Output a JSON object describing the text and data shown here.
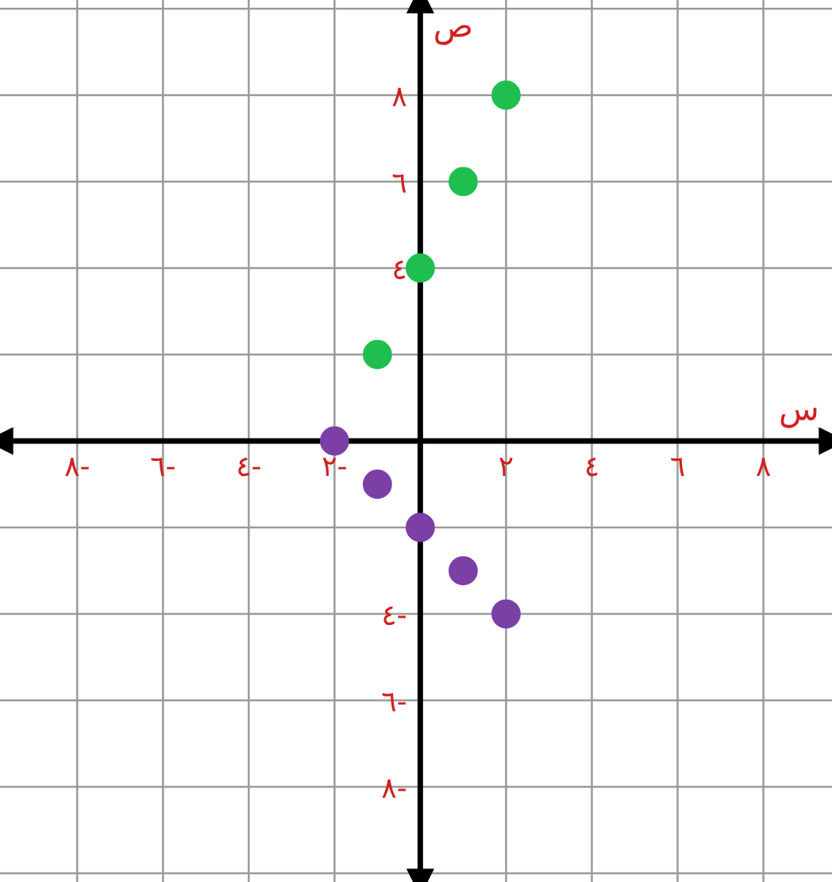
{
  "chart_data": {
    "type": "scatter",
    "xlabel": "س",
    "ylabel": "ص",
    "marker": "circle",
    "grid": true,
    "legend": false,
    "xlim": [
      -9.8,
      9.6
    ],
    "ylim": [
      -10.2,
      10.2
    ],
    "xticks": [
      {
        "value": -8,
        "label": "٨-"
      },
      {
        "value": -6,
        "label": "٦-"
      },
      {
        "value": -4,
        "label": "٤-"
      },
      {
        "value": -2,
        "label": "٢-"
      },
      {
        "value": 2,
        "label": "٢"
      },
      {
        "value": 4,
        "label": "٤"
      },
      {
        "value": 6,
        "label": "٦"
      },
      {
        "value": 8,
        "label": "٨"
      }
    ],
    "yticks": [
      {
        "value": -8,
        "label": "٨-"
      },
      {
        "value": -6,
        "label": "٦-"
      },
      {
        "value": -4,
        "label": "٤-"
      },
      {
        "value": 2,
        "label": null
      },
      {
        "value": 4,
        "label": "٤"
      },
      {
        "value": 6,
        "label": "٦"
      },
      {
        "value": 8,
        "label": "٨"
      }
    ],
    "series": [
      {
        "color": "#1fbf4f",
        "x": [
          -1,
          0,
          1,
          2
        ],
        "values": [
          2,
          4,
          6,
          8
        ]
      },
      {
        "color": "#7b3fa6",
        "x": [
          -2,
          -1,
          0,
          1,
          2
        ],
        "values": [
          0,
          -1,
          -2,
          -3,
          -4
        ]
      }
    ]
  }
}
